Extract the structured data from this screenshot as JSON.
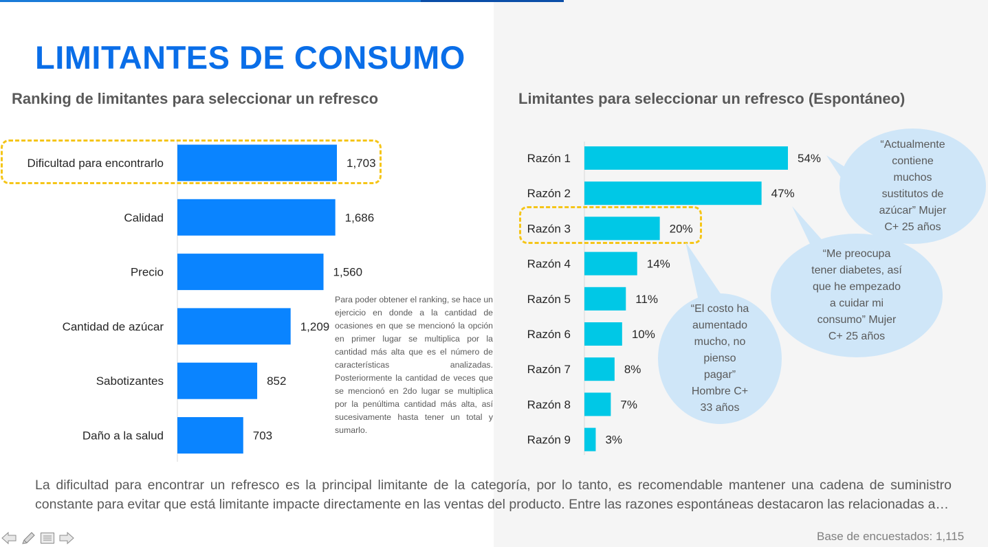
{
  "title": "LIMITANTES DE CONSUMO",
  "left_subtitle": "Ranking de limitantes para seleccionar un refresco",
  "right_subtitle": "Limitantes para seleccionar un refresco  (Espontáneo)",
  "chart_data": [
    {
      "type": "bar",
      "orientation": "horizontal",
      "title": "Ranking de limitantes para seleccionar un refresco",
      "categories": [
        "Dificultad para encontrarlo",
        "Calidad",
        "Precio",
        "Cantidad de azúcar",
        "Sabotizantes",
        "Daño a la salud"
      ],
      "values": [
        1703,
        1686,
        1560,
        1209,
        852,
        703
      ],
      "value_labels": [
        "1,703",
        "1,686",
        "1,560",
        "1,209",
        "852",
        "703"
      ],
      "bar_color": "#0a84ff",
      "highlighted_category": "Dificultad para encontrarlo",
      "grid": false
    },
    {
      "type": "bar",
      "orientation": "horizontal",
      "title": "Limitantes para seleccionar un refresco  (Espontáneo)",
      "categories": [
        "Razón 1",
        "Razón 2",
        "Razón 3",
        "Razón 4",
        "Razón 5",
        "Razón 6",
        "Razón 7",
        "Razón 8",
        "Razón 9"
      ],
      "values": [
        54,
        47,
        20,
        14,
        11,
        10,
        8,
        7,
        3
      ],
      "value_labels": [
        "54%",
        "47%",
        "20%",
        "14%",
        "11%",
        "10%",
        "8%",
        "7%",
        "3%"
      ],
      "bar_color": "#00c8e6",
      "highlighted_category": "Razón 3",
      "grid": false
    }
  ],
  "method_note": "Para poder obtener el ranking, se hace un ejercicio en donde a la cantidad de ocasiones en que se mencionó la opción en primer lugar se multiplica por la cantidad más alta que es el número de características analizadas. Posteriormente la cantidad de veces que se mencionó en 2do lugar se multiplica por la penúltima cantidad más alta, así sucesivamente hasta tener un total y sumarlo.",
  "quotes": {
    "q1": [
      "“Actualmente",
      "contiene",
      "muchos",
      "sustitutos de",
      "azúcar” Mujer",
      "C+ 25 años"
    ],
    "q2": [
      "“Me preocupa",
      "tener diabetes, así",
      "que he empezado",
      "a cuidar mi",
      "consumo” Mujer",
      "C+ 25 años"
    ],
    "q3": [
      "“El costo ha",
      "aumentado",
      "mucho, no",
      "pienso",
      "pagar”",
      "Hombre C+",
      "33 años"
    ]
  },
  "bubble_color": "#cfe6f8",
  "highlight_color": "#f5c518",
  "conclusion": "La dificultad para encontrar un refresco es la principal limitante de la categoría, por lo tanto, es recomendable mantener una cadena de suministro constante para evitar que está limitante impacte directamente en las ventas del producto. Entre las razones espontáneas destacaron las relacionadas a…",
  "base_note": "Base de encuestados: 1,115",
  "nav_icons": [
    "arrow-left-icon",
    "pen-icon",
    "menu-icon",
    "arrow-right-icon"
  ]
}
